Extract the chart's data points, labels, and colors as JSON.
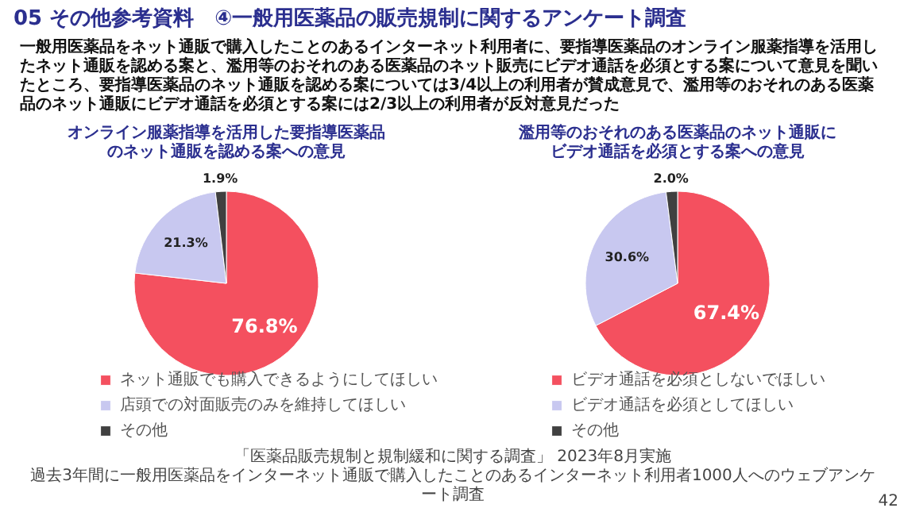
{
  "chart_data": [
    {
      "type": "other",
      "title": "05 その他参考資料　④一般用医薬品の販売規制に関するアンケート調査",
      "subtitle": "一般用医薬品をネット通販で購入したことのあるインターネット利用者に、要指導医薬品のオンライン服薬指導を活用したネット通販を認める案と、濫用等のおそれのある医薬品のネット販売にビデオ通話を必須とする案について意見を聞いたところ、要指導医薬品のネット通販を認める案については3/4以上の利用者が賛成意見で、濫用等のおそれのある医薬品のネット通販にビデオ通話を必須とする案には2/3以上の利用者が反対意見だった",
      "annotations": [
        "「医薬品販売規制と規制緩和に関する調査」 2023年8月実施",
        "過去3年間に一般用医薬品をインターネット通販で購入したことのあるインターネット利用者1000人へのウェブアンケート調査",
        "42"
      ]
    },
    {
      "type": "pie",
      "title": "オンライン服薬指導を活用した要指導医薬品のネット通販を認める案への意見",
      "categories": [
        "ネット通販でも購入できるようにしてほしい",
        "店頭での対面販売のみを維持してほしい",
        "その他"
      ],
      "values": [
        76.8,
        21.3,
        1.9
      ],
      "colors": [
        "#f4505f",
        "#c8c8f0",
        "#404040"
      ],
      "value_labels": [
        "76.8%",
        "21.3%",
        "1.9%"
      ],
      "legend": "bottom"
    },
    {
      "type": "pie",
      "title": "濫用等のおそれのある医薬品のネット通販にビデオ通話を必須とする案への意見",
      "categories": [
        "ビデオ通話を必須としないでほしい",
        "ビデオ通話を必須としてほしい",
        "その他"
      ],
      "values": [
        67.4,
        30.6,
        2.0
      ],
      "colors": [
        "#f4505f",
        "#c8c8f0",
        "#404040"
      ],
      "value_labels": [
        "67.4%",
        "30.6%",
        "2.0%"
      ],
      "legend": "bottom"
    }
  ]
}
